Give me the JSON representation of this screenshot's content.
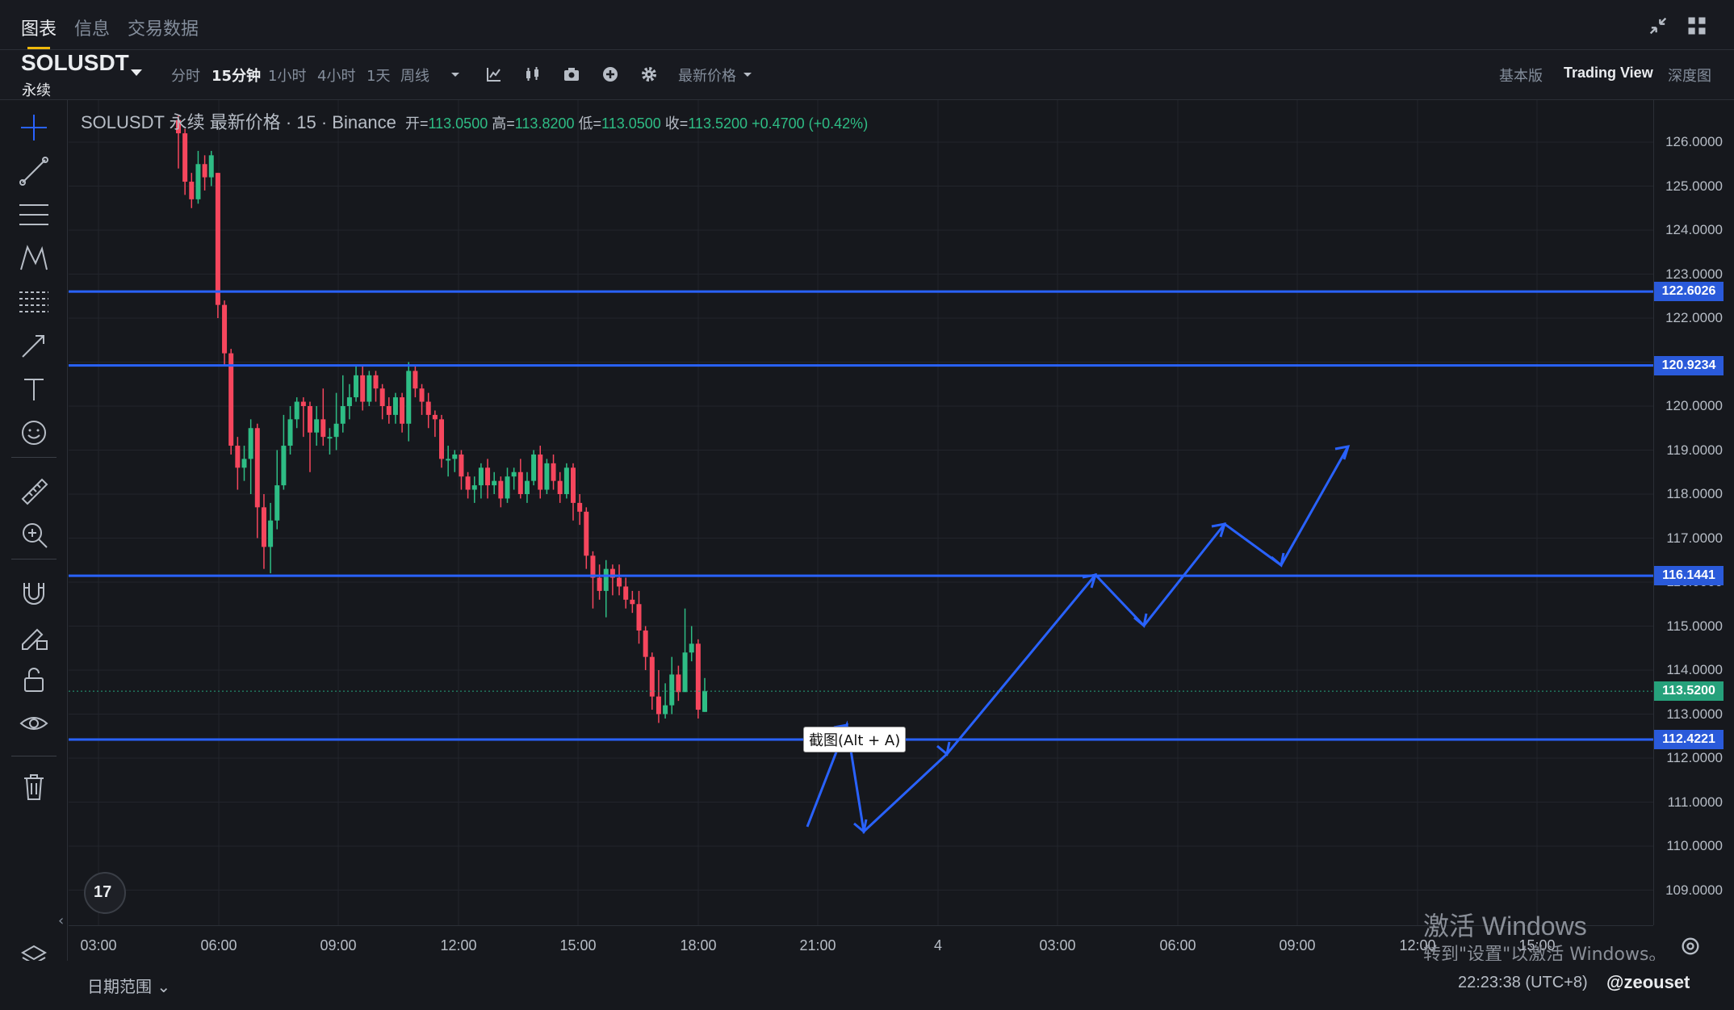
{
  "tabs": [
    "图表",
    "信息",
    "交易数据"
  ],
  "symbol": {
    "name": "SOLUSDT",
    "type": "永续"
  },
  "intervals": [
    "分时",
    "15分钟",
    "1小时",
    "4小时",
    "1天",
    "周线"
  ],
  "price_type": "最新价格",
  "view_tabs": [
    "基本版",
    "Trading View",
    "深度图"
  ],
  "legend": {
    "title": "SOLUSDT 永续 最新价格 · 15 · Binance",
    "open_label": "开=",
    "open": "113.0500",
    "high_label": "高=",
    "high": "113.8200",
    "low_label": "低=",
    "low": "113.0500",
    "close_label": "收=",
    "close": "113.5200",
    "change": "+0.4700 (+0.42%)"
  },
  "price_ticks": [
    "126.0000",
    "125.0000",
    "124.0000",
    "123.0000",
    "122.0000",
    "121.0000",
    "120.0000",
    "119.0000",
    "118.0000",
    "117.0000",
    "116.0000",
    "115.0000",
    "114.0000",
    "113.0000",
    "112.0000",
    "111.0000",
    "110.0000",
    "109.0000"
  ],
  "horizontal_lines": [
    "122.6026",
    "120.9234",
    "116.1441",
    "112.4221"
  ],
  "current_price": "113.5200",
  "time_ticks": [
    "03:00",
    "06:00",
    "09:00",
    "12:00",
    "15:00",
    "18:00",
    "21:00",
    "4",
    "03:00",
    "06:00",
    "09:00",
    "12:00",
    "15:00"
  ],
  "tooltip": "截图(Alt + A)",
  "date_range": "日期范围",
  "clock": "22:23:38 (UTC+8)",
  "watermark": "@zeouset",
  "windows_notice": {
    "title": "激活 Windows",
    "subtitle": "转到\"设置\"以激活 Windows。"
  },
  "tv_logo": "17",
  "colors": {
    "up": "#2ebd85",
    "down": "#f6465d",
    "line": "#2962ff",
    "accent": "#f0b90b"
  },
  "chart_data": {
    "type": "candlestick",
    "y_range": [
      108.5,
      126.5
    ],
    "candles_ohlc": [
      [
        126.5,
        126.2,
        126.6,
        125.4
      ],
      [
        126.2,
        125.1,
        126.3,
        124.8
      ],
      [
        125.1,
        124.7,
        125.3,
        124.5
      ],
      [
        124.7,
        125.5,
        125.8,
        124.6
      ],
      [
        125.5,
        125.2,
        125.7,
        124.9
      ],
      [
        125.2,
        125.7,
        125.8,
        125.0
      ],
      [
        125.3,
        122.3,
        125.3,
        122.0
      ],
      [
        122.3,
        121.2,
        122.4,
        120.9
      ],
      [
        121.2,
        119.1,
        121.3,
        118.9
      ],
      [
        119.1,
        118.6,
        119.3,
        118.1
      ],
      [
        118.6,
        118.8,
        119.1,
        118.3
      ],
      [
        118.8,
        119.5,
        119.7,
        118.0
      ],
      [
        119.5,
        117.7,
        119.6,
        117.0
      ],
      [
        117.7,
        116.8,
        118.0,
        116.3
      ],
      [
        116.8,
        117.4,
        117.8,
        116.2
      ],
      [
        117.4,
        118.2,
        119.0,
        117.2
      ],
      [
        118.2,
        119.1,
        119.8,
        118.1
      ],
      [
        119.1,
        119.7,
        120.0,
        118.9
      ],
      [
        119.7,
        120.1,
        120.2,
        119.5
      ],
      [
        120.1,
        120.0,
        120.2,
        119.3
      ],
      [
        120.0,
        119.4,
        120.1,
        118.5
      ],
      [
        119.4,
        119.7,
        120.0,
        119.1
      ],
      [
        119.7,
        119.3,
        120.4,
        119.1
      ],
      [
        119.3,
        119.3,
        119.5,
        118.9
      ],
      [
        119.3,
        119.6,
        120.3,
        119.0
      ],
      [
        119.6,
        120.0,
        120.7,
        119.4
      ],
      [
        120.0,
        120.2,
        120.5,
        119.7
      ],
      [
        120.2,
        120.7,
        120.9,
        120.1
      ],
      [
        120.7,
        120.1,
        120.9,
        119.9
      ],
      [
        120.1,
        120.7,
        120.8,
        120.0
      ],
      [
        120.7,
        120.4,
        120.8,
        120.1
      ],
      [
        120.4,
        120.0,
        120.5,
        119.7
      ],
      [
        120.0,
        119.8,
        120.2,
        119.6
      ],
      [
        119.8,
        120.2,
        120.3,
        119.6
      ],
      [
        120.2,
        119.6,
        120.3,
        119.4
      ],
      [
        119.6,
        120.8,
        121.0,
        119.2
      ],
      [
        120.8,
        120.4,
        120.9,
        120.2
      ],
      [
        120.4,
        120.1,
        120.5,
        119.8
      ],
      [
        120.1,
        119.8,
        120.3,
        119.5
      ],
      [
        119.8,
        119.7,
        119.9,
        119.3
      ],
      [
        119.7,
        118.8,
        119.8,
        118.6
      ],
      [
        118.8,
        118.8,
        119.1,
        118.4
      ],
      [
        118.8,
        118.9,
        119.0,
        118.5
      ],
      [
        118.9,
        118.4,
        119.0,
        118.1
      ],
      [
        118.4,
        118.1,
        118.5,
        117.9
      ],
      [
        118.1,
        118.2,
        118.4,
        117.8
      ],
      [
        118.2,
        118.6,
        118.7,
        117.9
      ],
      [
        118.6,
        118.2,
        118.8,
        117.9
      ],
      [
        118.2,
        118.3,
        118.5,
        118.0
      ],
      [
        118.3,
        117.9,
        118.4,
        117.7
      ],
      [
        117.9,
        118.4,
        118.6,
        117.8
      ],
      [
        118.4,
        118.5,
        118.6,
        118.1
      ],
      [
        118.5,
        118.0,
        118.8,
        117.9
      ],
      [
        118.0,
        118.3,
        118.5,
        117.8
      ],
      [
        118.3,
        118.9,
        119.0,
        118.2
      ],
      [
        118.9,
        118.1,
        119.1,
        117.9
      ],
      [
        118.1,
        118.7,
        118.8,
        118.0
      ],
      [
        118.7,
        118.3,
        118.9,
        118.1
      ],
      [
        118.3,
        118.0,
        118.5,
        117.8
      ],
      [
        118.0,
        118.6,
        118.7,
        117.9
      ],
      [
        118.6,
        117.8,
        118.7,
        117.4
      ],
      [
        117.8,
        117.6,
        118.0,
        117.3
      ],
      [
        117.6,
        116.6,
        117.7,
        116.3
      ],
      [
        116.6,
        116.1,
        116.7,
        115.4
      ],
      [
        116.1,
        115.8,
        116.4,
        115.6
      ],
      [
        115.8,
        116.3,
        116.5,
        115.2
      ],
      [
        116.3,
        116.1,
        116.4,
        115.7
      ],
      [
        116.1,
        115.9,
        116.4,
        115.7
      ],
      [
        115.9,
        115.6,
        116.1,
        115.4
      ],
      [
        115.6,
        115.5,
        115.8,
        115.3
      ],
      [
        115.5,
        114.9,
        115.8,
        114.6
      ],
      [
        114.9,
        114.3,
        115.0,
        114.0
      ],
      [
        114.3,
        113.4,
        114.4,
        113.1
      ],
      [
        113.4,
        113.0,
        114.0,
        112.8
      ],
      [
        113.0,
        113.2,
        113.7,
        112.9
      ],
      [
        113.2,
        113.9,
        114.3,
        113.0
      ],
      [
        113.9,
        113.5,
        114.1,
        113.3
      ],
      [
        113.5,
        114.4,
        115.4,
        114.0
      ],
      [
        114.4,
        114.6,
        115.0,
        114.2
      ],
      [
        114.6,
        113.1,
        114.7,
        112.9
      ],
      [
        113.05,
        113.52,
        113.82,
        113.05
      ]
    ]
  }
}
